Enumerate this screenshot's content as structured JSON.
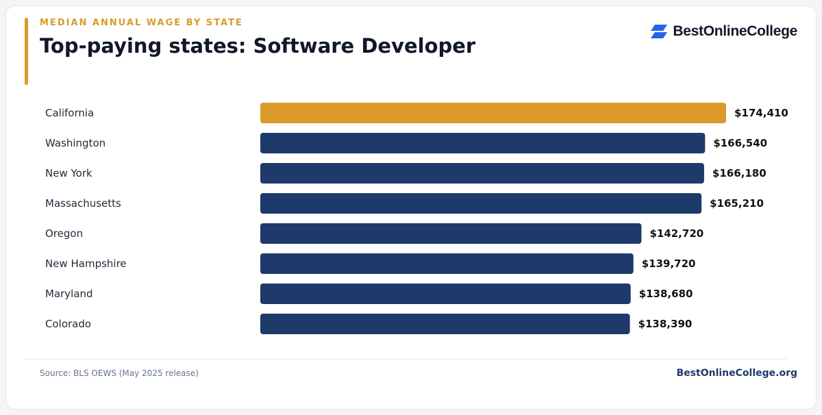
{
  "header": {
    "eyebrow": "MEDIAN ANNUAL WAGE BY STATE",
    "title": "Top-paying states: Software Developer"
  },
  "brand": {
    "logo_text": "BestOnlineCollege",
    "footer_site": "BestOnlineCollege.org"
  },
  "footer": {
    "source": "Source: BLS OEWS (May 2025 release)"
  },
  "colors": {
    "highlight": "#DA9A29",
    "bar": "#1E3A6B",
    "footer_brand": "#1E3A6B",
    "logo_mark": "#2563EB"
  },
  "chart_data": {
    "type": "bar",
    "orientation": "horizontal",
    "categories": [
      "California",
      "Washington",
      "New York",
      "Massachusetts",
      "Oregon",
      "New Hampshire",
      "Maryland",
      "Colorado"
    ],
    "values": [
      174410,
      166540,
      166180,
      165210,
      142720,
      139720,
      138680,
      138390
    ],
    "value_labels": [
      "$174,410",
      "$166,540",
      "$166,180",
      "$165,210",
      "$142,720",
      "$139,720",
      "$138,680",
      "$138,390"
    ],
    "highlight_index": 0,
    "grid": false
  }
}
